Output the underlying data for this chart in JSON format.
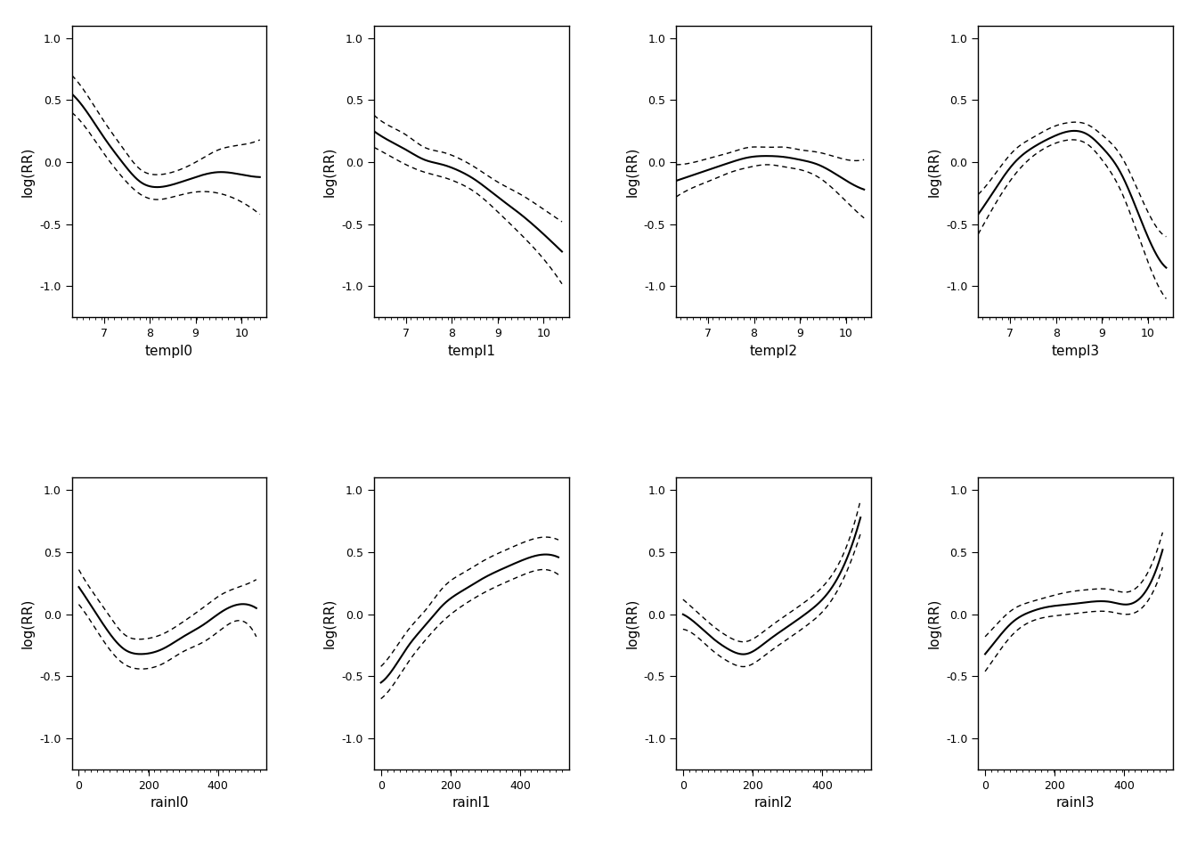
{
  "background_color": "#ffffff",
  "ylabel": "log(RR)",
  "ylim": [
    -1.25,
    1.1
  ],
  "yticks": [
    -1.0,
    -0.5,
    0.0,
    0.5,
    1.0
  ],
  "subplots": [
    {
      "xlabel": "templ0",
      "xmin": 6.3,
      "xmax": 10.55,
      "xticks": [
        7,
        8,
        9,
        10
      ],
      "curve_type": "temp",
      "x_pts": [
        6.3,
        6.6,
        7.0,
        7.4,
        7.8,
        8.1,
        8.5,
        9.0,
        9.5,
        10.0,
        10.4
      ],
      "rr": [
        0.55,
        0.42,
        0.2,
        0.0,
        -0.16,
        -0.2,
        -0.18,
        -0.12,
        -0.08,
        -0.1,
        -0.12
      ],
      "low": [
        0.4,
        0.28,
        0.07,
        -0.12,
        -0.26,
        -0.3,
        -0.28,
        -0.24,
        -0.25,
        -0.32,
        -0.42
      ],
      "high": [
        0.7,
        0.56,
        0.33,
        0.12,
        -0.06,
        -0.1,
        -0.08,
        0.0,
        0.1,
        0.14,
        0.18
      ]
    },
    {
      "xlabel": "templ1",
      "xmin": 6.3,
      "xmax": 10.55,
      "xticks": [
        7,
        8,
        9,
        10
      ],
      "curve_type": "temp",
      "x_pts": [
        6.3,
        6.6,
        7.0,
        7.4,
        7.8,
        8.1,
        8.5,
        9.0,
        9.5,
        10.0,
        10.4
      ],
      "rr": [
        0.25,
        0.18,
        0.1,
        0.02,
        -0.02,
        -0.06,
        -0.14,
        -0.28,
        -0.42,
        -0.58,
        -0.72
      ],
      "low": [
        0.12,
        0.06,
        -0.02,
        -0.08,
        -0.12,
        -0.16,
        -0.24,
        -0.4,
        -0.58,
        -0.78,
        -0.98
      ],
      "high": [
        0.38,
        0.3,
        0.22,
        0.12,
        0.08,
        0.04,
        -0.04,
        -0.16,
        -0.26,
        -0.38,
        -0.48
      ]
    },
    {
      "xlabel": "templ2",
      "xmin": 6.3,
      "xmax": 10.55,
      "xticks": [
        7,
        8,
        9,
        10
      ],
      "curve_type": "temp",
      "x_pts": [
        6.3,
        6.7,
        7.1,
        7.5,
        7.9,
        8.3,
        8.7,
        9.0,
        9.4,
        9.8,
        10.4
      ],
      "rr": [
        -0.15,
        -0.1,
        -0.05,
        0.0,
        0.04,
        0.05,
        0.04,
        0.02,
        -0.02,
        -0.1,
        -0.22
      ],
      "low": [
        -0.28,
        -0.2,
        -0.14,
        -0.08,
        -0.04,
        -0.02,
        -0.04,
        -0.06,
        -0.12,
        -0.24,
        -0.45
      ],
      "high": [
        -0.02,
        0.0,
        0.04,
        0.08,
        0.12,
        0.12,
        0.12,
        0.1,
        0.08,
        0.04,
        0.02
      ]
    },
    {
      "xlabel": "templ3",
      "xmin": 6.3,
      "xmax": 10.55,
      "xticks": [
        7,
        8,
        9,
        10
      ],
      "curve_type": "temp",
      "x_pts": [
        6.3,
        6.7,
        7.1,
        7.5,
        7.9,
        8.3,
        8.7,
        9.0,
        9.4,
        9.8,
        10.4
      ],
      "rr": [
        -0.42,
        -0.2,
        0.0,
        0.12,
        0.2,
        0.25,
        0.22,
        0.12,
        -0.08,
        -0.42,
        -0.85
      ],
      "low": [
        -0.58,
        -0.32,
        -0.1,
        0.05,
        0.14,
        0.18,
        0.14,
        0.02,
        -0.22,
        -0.6,
        -1.1
      ],
      "high": [
        -0.26,
        -0.08,
        0.1,
        0.2,
        0.28,
        0.32,
        0.3,
        0.22,
        0.06,
        -0.24,
        -0.6
      ]
    },
    {
      "xlabel": "rainl0",
      "xmin": -20,
      "xmax": 540,
      "xticks": [
        0,
        200,
        400
      ],
      "curve_type": "rain",
      "x_pts": [
        0,
        40,
        80,
        130,
        180,
        240,
        300,
        360,
        410,
        460,
        510
      ],
      "rr": [
        0.22,
        0.05,
        -0.12,
        -0.28,
        -0.32,
        -0.28,
        -0.18,
        -0.08,
        0.02,
        0.08,
        0.05
      ],
      "low": [
        0.08,
        -0.08,
        -0.25,
        -0.4,
        -0.44,
        -0.4,
        -0.3,
        -0.22,
        -0.12,
        -0.05,
        -0.18
      ],
      "high": [
        0.36,
        0.18,
        0.02,
        -0.16,
        -0.2,
        -0.16,
        -0.06,
        0.06,
        0.16,
        0.22,
        0.28
      ]
    },
    {
      "xlabel": "rainl1",
      "xmin": -20,
      "xmax": 540,
      "xticks": [
        0,
        200,
        400
      ],
      "curve_type": "rain",
      "x_pts": [
        0,
        40,
        80,
        130,
        180,
        240,
        300,
        360,
        410,
        460,
        510
      ],
      "rr": [
        -0.55,
        -0.42,
        -0.25,
        -0.08,
        0.08,
        0.2,
        0.3,
        0.38,
        0.44,
        0.48,
        0.46
      ],
      "low": [
        -0.68,
        -0.55,
        -0.38,
        -0.2,
        -0.05,
        0.08,
        0.18,
        0.26,
        0.32,
        0.36,
        0.32
      ],
      "high": [
        -0.42,
        -0.28,
        -0.12,
        0.04,
        0.22,
        0.34,
        0.44,
        0.52,
        0.58,
        0.62,
        0.6
      ]
    },
    {
      "xlabel": "rainl2",
      "xmin": -20,
      "xmax": 540,
      "xticks": [
        0,
        200,
        400
      ],
      "curve_type": "rain",
      "x_pts": [
        0,
        40,
        80,
        130,
        180,
        240,
        300,
        360,
        410,
        460,
        510
      ],
      "rr": [
        0.0,
        -0.08,
        -0.18,
        -0.28,
        -0.32,
        -0.22,
        -0.1,
        0.02,
        0.15,
        0.38,
        0.78
      ],
      "low": [
        -0.12,
        -0.18,
        -0.28,
        -0.38,
        -0.42,
        -0.32,
        -0.2,
        -0.08,
        0.05,
        0.28,
        0.65
      ],
      "high": [
        0.12,
        0.02,
        -0.08,
        -0.18,
        -0.22,
        -0.12,
        0.0,
        0.12,
        0.25,
        0.48,
        0.92
      ]
    },
    {
      "xlabel": "rainl3",
      "xmin": -20,
      "xmax": 540,
      "xticks": [
        0,
        200,
        400
      ],
      "curve_type": "rain",
      "x_pts": [
        0,
        40,
        80,
        130,
        180,
        240,
        300,
        360,
        410,
        460,
        510
      ],
      "rr": [
        -0.32,
        -0.18,
        -0.06,
        0.02,
        0.06,
        0.08,
        0.1,
        0.1,
        0.08,
        0.18,
        0.52
      ],
      "low": [
        -0.46,
        -0.3,
        -0.16,
        -0.06,
        -0.02,
        0.0,
        0.02,
        0.02,
        0.0,
        0.08,
        0.38
      ],
      "high": [
        -0.18,
        -0.06,
        0.04,
        0.1,
        0.14,
        0.18,
        0.2,
        0.2,
        0.18,
        0.3,
        0.66
      ]
    }
  ]
}
